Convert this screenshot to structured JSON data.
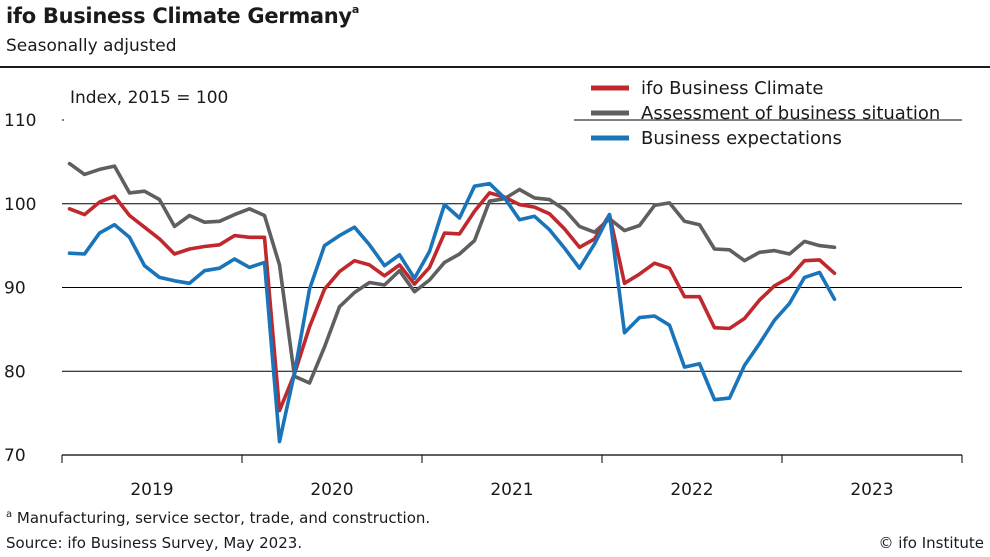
{
  "header": {
    "title": "ifo Business Climate Germany",
    "title_footnote_mark": "a",
    "subtitle": "Seasonally adjusted"
  },
  "footer": {
    "note_mark": "a",
    "note": " Manufacturing, service sector, trade, and construction.",
    "source": "Source: ifo Business Survey, May 2023.",
    "credit": "© ifo Institute"
  },
  "chart_data": {
    "type": "line",
    "title": "ifo Business Climate Germany",
    "subtitle": "Seasonally adjusted",
    "annotation": "Index, 2015 = 100",
    "ylim": [
      70,
      110
    ],
    "yticks": [
      70,
      80,
      90,
      100,
      110
    ],
    "ytick_labels": [
      "70",
      "80",
      "90",
      "100",
      "110"
    ],
    "xtick_labels": [
      "2019",
      "2020",
      "2021",
      "2022",
      "2023"
    ],
    "x_start": "2018-07",
    "x_end": "2023-05",
    "grid": true,
    "legend_position": "top-right",
    "series": [
      {
        "name": "ifo Business Climate",
        "color": "#c0282d",
        "values": [
          99.4,
          98.7,
          100.2,
          100.9,
          98.6,
          97.2,
          95.8,
          94.0,
          94.6,
          94.9,
          95.1,
          96.2,
          96.0,
          96.0,
          75.3,
          79.7,
          85.3,
          89.8,
          91.9,
          93.2,
          92.7,
          91.4,
          92.7,
          90.4,
          92.4,
          96.5,
          96.4,
          99.1,
          101.3,
          100.8,
          99.9,
          99.6,
          98.8,
          97.0,
          94.8,
          95.8,
          98.7,
          90.5,
          91.6,
          92.9,
          92.3,
          88.9,
          88.9,
          85.2,
          85.1,
          86.3,
          88.5,
          90.2,
          91.2,
          93.2,
          93.3,
          91.7
        ]
      },
      {
        "name": "Assessment of business situation",
        "color": "#5f5f5f",
        "values": [
          104.8,
          103.5,
          104.1,
          104.5,
          101.3,
          101.5,
          100.5,
          97.3,
          98.6,
          97.8,
          97.9,
          98.7,
          99.4,
          98.6,
          92.7,
          79.4,
          78.6,
          82.9,
          87.7,
          89.4,
          90.6,
          90.3,
          92.0,
          89.5,
          90.9,
          93.0,
          94.0,
          95.6,
          100.3,
          100.6,
          101.7,
          100.7,
          100.5,
          99.3,
          97.3,
          96.6,
          98.2,
          96.8,
          97.4,
          99.8,
          100.1,
          97.9,
          97.5,
          94.6,
          94.5,
          93.2,
          94.2,
          94.4,
          94.0,
          95.5,
          95.0,
          94.8
        ]
      },
      {
        "name": "Business expectations",
        "color": "#1a74b9",
        "values": [
          94.1,
          94.0,
          96.5,
          97.5,
          96.0,
          92.6,
          91.2,
          90.8,
          90.5,
          92.0,
          92.3,
          93.4,
          92.4,
          93.0,
          71.6,
          79.8,
          89.8,
          95.0,
          96.2,
          97.2,
          95.1,
          92.6,
          93.9,
          91.1,
          94.3,
          99.9,
          98.3,
          102.1,
          102.4,
          100.7,
          98.1,
          98.5,
          96.9,
          94.7,
          92.3,
          95.2,
          98.7,
          84.6,
          86.4,
          86.6,
          85.5,
          80.5,
          80.9,
          76.6,
          76.8,
          80.7,
          83.3,
          86.1,
          88.1,
          91.2,
          91.8,
          88.6
        ]
      }
    ]
  }
}
